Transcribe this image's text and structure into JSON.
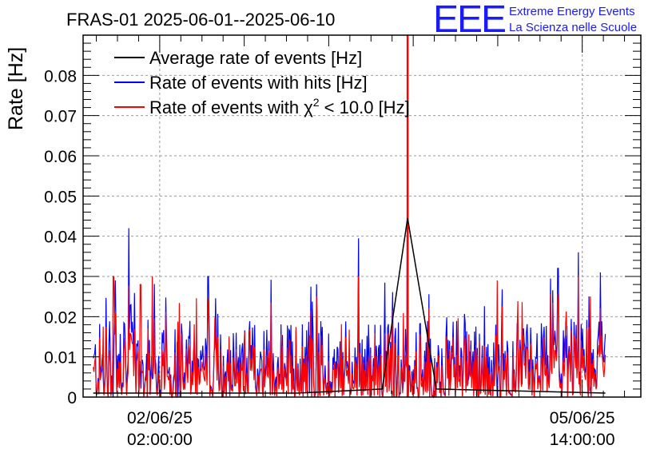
{
  "chart_data": {
    "type": "line",
    "title": "FRAS-01 2025-06-01--2025-06-10",
    "ylabel": "Rate [Hz]",
    "xlabel": "",
    "ylim": [
      0,
      0.09
    ],
    "y_ticks": [
      0,
      0.01,
      0.02,
      0.03,
      0.04,
      0.05,
      0.06,
      0.07,
      0.08
    ],
    "y_tick_labels": [
      "0",
      "0.01",
      "0.02",
      "0.03",
      "0.04",
      "0.05",
      "0.06",
      "0.07",
      "0.08"
    ],
    "x_unit": "days since 2025-06-01 00:00",
    "xlim": [
      1.63,
      4.93
    ],
    "x_ticks": [
      {
        "x": 2.0833,
        "line1": "02/06/25",
        "line2": "02:00:00"
      },
      {
        "x": 4.5833,
        "line1": "05/06/25",
        "line2": "14:00:00"
      }
    ],
    "grid": true,
    "legend_position": "top-left",
    "series": [
      {
        "name": "Average rate of events [Hz]",
        "color": "#000000",
        "points": [
          [
            1.69,
            0.001
          ],
          [
            2.9,
            0.001
          ],
          [
            3.4,
            0.002
          ],
          [
            3.55,
            0.0445
          ],
          [
            3.72,
            0.002
          ],
          [
            4.72,
            0.001
          ]
        ]
      },
      {
        "name": "Rate of events with hits [Hz]",
        "color": "#0000ff",
        "summary": "noisy rate, mostly 0.000-0.025 Hz, spikes to ~0.042 Hz near 1.90, ~0.035 near 3.3 and ~0.035 near 4.55",
        "x_range": [
          1.69,
          4.72
        ]
      },
      {
        "name": "Rate of events with χ² < 10.0 [Hz]",
        "color": "#ff0000",
        "summary": "noisy rate, mostly 0.000-0.020 Hz, spikes to ~0.030 Hz, one spike above the plot range (>0.09 Hz) near 3.55",
        "x_range": [
          1.69,
          4.72
        ]
      }
    ],
    "legend_labels": {
      "avg": "Average rate of events [Hz]",
      "hits": "Rate of events with hits [Hz]",
      "chi_prefix": "Rate of events with χ",
      "chi_sup": "2",
      "chi_suffix": " < 10.0 [Hz]"
    }
  },
  "logo": {
    "letters": "EEE",
    "line1": "Extreme Energy Events",
    "line2": "La Scienza nelle Scuole",
    "color": "#1a1aff"
  }
}
